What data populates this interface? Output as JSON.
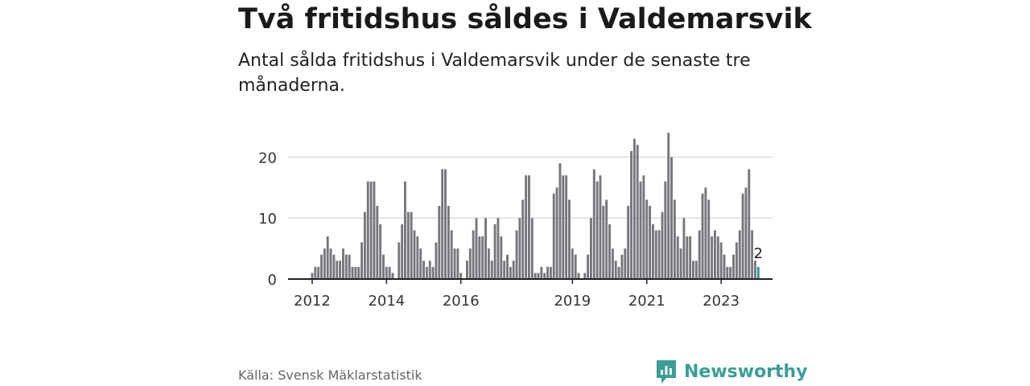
{
  "header": {
    "title": "Två fritidshus såldes i Valdemarsvik",
    "subtitle": "Antal sålda fritidshus i Valdemarsvik under de senaste tre månaderna."
  },
  "footer": {
    "source": "Källa: Svensk Mäklarstatistik",
    "brand": "Newsworthy",
    "brand_icon": "bar-chart-icon"
  },
  "colors": {
    "bar": "#76767c",
    "highlight": "#2a9d93",
    "grid": "#dddddd",
    "axis": "#222222",
    "brand": "#3a9e96"
  },
  "chart_data": {
    "type": "bar",
    "start": "2012-01",
    "frequency": "monthly",
    "values": [
      1,
      2,
      2,
      4,
      5,
      7,
      5,
      4,
      3,
      3,
      5,
      4,
      4,
      2,
      2,
      2,
      6,
      11,
      16,
      16,
      16,
      12,
      9,
      4,
      2,
      2,
      1,
      0,
      6,
      9,
      16,
      11,
      11,
      8,
      7,
      5,
      3,
      2,
      3,
      2,
      6,
      12,
      18,
      18,
      12,
      8,
      5,
      5,
      1,
      0,
      3,
      5,
      8,
      10,
      7,
      7,
      10,
      5,
      3,
      9,
      10,
      7,
      3,
      4,
      2,
      3,
      8,
      10,
      13,
      17,
      17,
      10,
      1,
      1,
      2,
      1,
      2,
      2,
      14,
      15,
      19,
      17,
      17,
      13,
      5,
      4,
      1,
      0,
      1,
      4,
      10,
      18,
      16,
      17,
      12,
      13,
      9,
      5,
      3,
      2,
      4,
      5,
      12,
      21,
      23,
      22,
      16,
      17,
      13,
      12,
      9,
      8,
      8,
      11,
      16,
      24,
      20,
      13,
      7,
      5,
      10,
      7,
      7,
      3,
      3,
      8,
      14,
      15,
      13,
      7,
      8,
      7,
      6,
      4,
      2,
      2,
      4,
      6,
      8,
      14,
      15,
      18,
      8,
      3,
      2
    ],
    "highlight": {
      "index": 144,
      "label": "2"
    },
    "x_ticks": [
      "2012",
      "2014",
      "2016",
      "2019",
      "2021",
      "2023"
    ],
    "y_ticks": [
      0,
      10,
      20
    ],
    "ylim": [
      0,
      24
    ],
    "grid": true
  }
}
